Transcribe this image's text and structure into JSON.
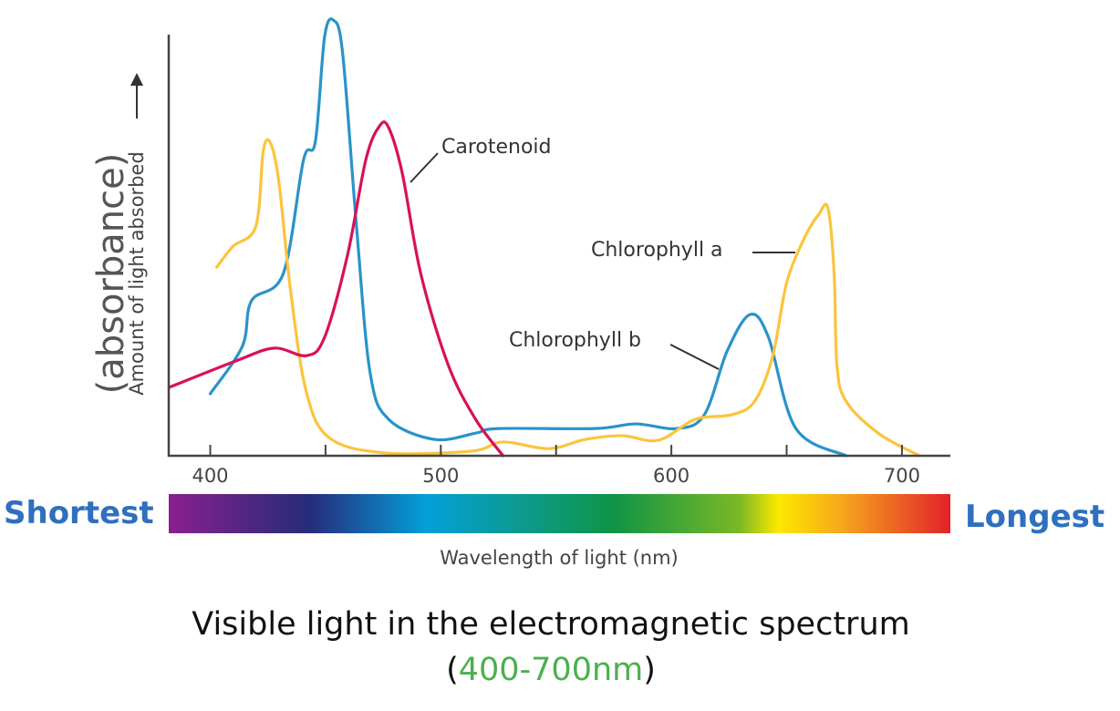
{
  "chart_data": {
    "type": "line",
    "title": "Visible light in the electromagnetic spectrum",
    "subtitle_prefix": "(",
    "subtitle_range": "400-700nm",
    "subtitle_suffix": ")",
    "xlabel": "Wavelength of light (nm)",
    "ylabel_main": "(absorbance)",
    "ylabel_sub": "Amount of light absorbed",
    "xlim": [
      382,
      721
    ],
    "ylim": [
      0,
      104
    ],
    "x_ticks": [
      400,
      450,
      500,
      550,
      600,
      650,
      700
    ],
    "x_tick_labels": [
      "400",
      "500",
      "600",
      "700"
    ],
    "x_tick_label_values": [
      400,
      500,
      600,
      700
    ],
    "grid": false,
    "spectrum_bar": {
      "left_label": "Shortest",
      "right_label": "Longest",
      "colors": [
        "#8a1f8f",
        "#252c7a",
        "#049fd9",
        "#0c9a8f",
        "#109445",
        "#7ab827",
        "#fde800",
        "#f6a81c",
        "#e3212a"
      ]
    },
    "series": [
      {
        "name": "Chlorophyll b",
        "color": "#2a93c9",
        "x": [
          400,
          413.9,
          417.9,
          431.7,
          440.5,
          445.6,
          449.6,
          453.6,
          457.5,
          463.5,
          469.4,
          477.4,
          497.2,
          515.1,
          525,
          566.7,
          584.5,
          602.4,
          614.3,
          624.2,
          634.1,
          642.1,
          654,
          675.8
        ],
        "y": [
          14.8,
          26.1,
          37,
          43.5,
          70.7,
          75,
          100,
          103.9,
          95.7,
          54.3,
          19.6,
          8.7,
          3.9,
          5.4,
          6.5,
          6.5,
          7.6,
          6.5,
          9.8,
          25,
          33.7,
          28.3,
          6.5,
          0
        ]
      },
      {
        "name": "Chlorophyll a",
        "color": "#fcc43d",
        "x": [
          402.8,
          409.9,
          419.8,
          423,
          426.2,
          429.8,
          434.9,
          441.7,
          451.6,
          475.4,
          513.1,
          527,
          546.8,
          562.7,
          578.6,
          594.4,
          610.3,
          626.2,
          636.1,
          644,
          650,
          657.9,
          663.9,
          667.9,
          670.6,
          671.8,
          675.8,
          689.7,
          707.5
        ],
        "y": [
          45,
          50,
          54.8,
          72.8,
          74.6,
          65.2,
          39.1,
          15.2,
          4.3,
          0.7,
          1.1,
          3.3,
          1.7,
          3.9,
          4.8,
          3.7,
          8.7,
          9.8,
          13,
          23.9,
          41.3,
          52.2,
          57.6,
          59.1,
          43.5,
          21.7,
          13,
          5.4,
          0
        ]
      },
      {
        "name": "Carotenoid",
        "color": "#d8115a",
        "x": [
          382.1,
          411.9,
          427.8,
          441.7,
          449.6,
          459.5,
          467.5,
          473.4,
          477.4,
          483.3,
          491.3,
          503.2,
          515.1,
          527
        ],
        "y": [
          16.3,
          22.8,
          25.7,
          23.9,
          28.3,
          47.8,
          70.7,
          78.7,
          78.3,
          67.4,
          43.5,
          21.7,
          8.7,
          0
        ]
      }
    ]
  }
}
